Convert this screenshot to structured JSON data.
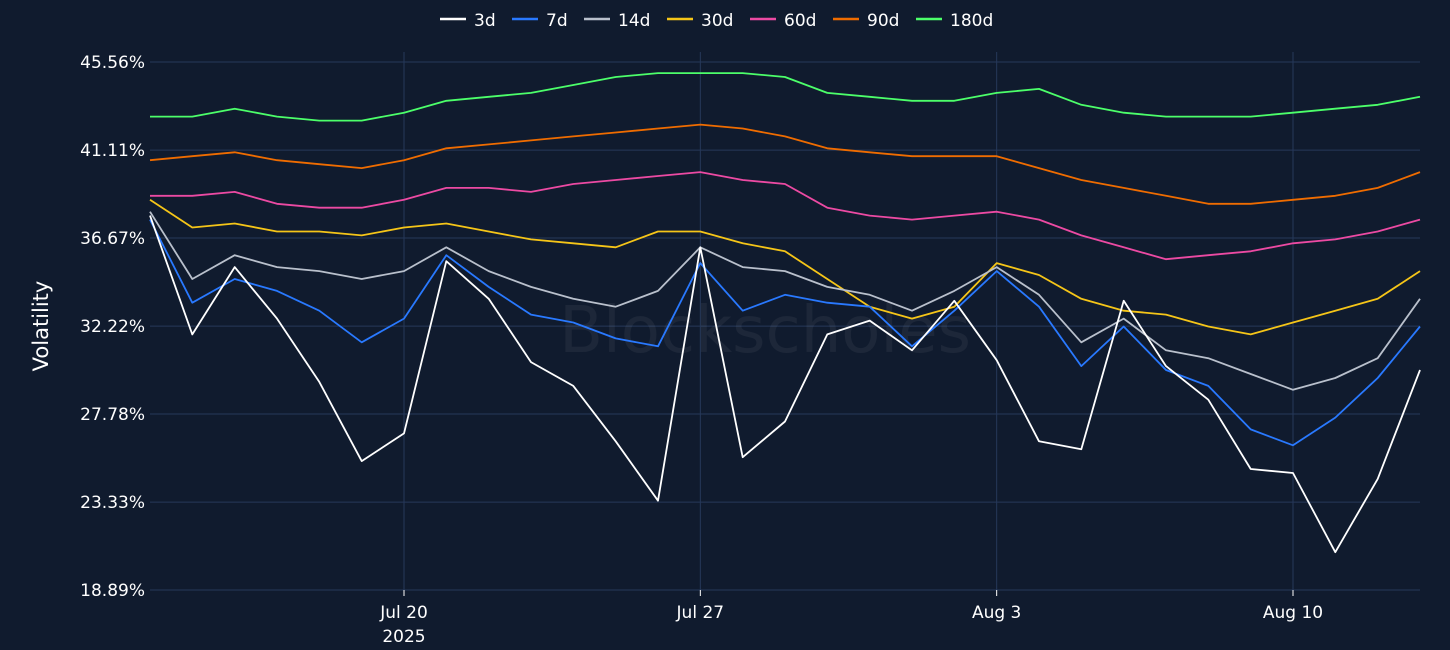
{
  "watermark": "Blockscholes",
  "chart_data": {
    "type": "line",
    "ylabel": "Volatility",
    "xlabel": "",
    "ylim": [
      18.89,
      45.56
    ],
    "yticks": [
      "18.89%",
      "23.33%",
      "27.78%",
      "32.22%",
      "36.67%",
      "41.11%",
      "45.56%"
    ],
    "ytick_values": [
      18.89,
      23.33,
      27.78,
      32.22,
      36.67,
      41.11,
      45.56
    ],
    "x_start": "2025-07-14",
    "x_end": "2025-08-13",
    "xticks": [
      {
        "date": "2025-07-20",
        "label": "Jul 20",
        "sublabel": "2025"
      },
      {
        "date": "2025-07-27",
        "label": "Jul 27",
        "sublabel": ""
      },
      {
        "date": "2025-08-03",
        "label": "Aug 3",
        "sublabel": ""
      },
      {
        "date": "2025-08-10",
        "label": "Aug 10",
        "sublabel": ""
      }
    ],
    "grid": true,
    "legend_position": "top-center",
    "x": [
      "2025-07-14",
      "2025-07-15",
      "2025-07-16",
      "2025-07-17",
      "2025-07-18",
      "2025-07-19",
      "2025-07-20",
      "2025-07-21",
      "2025-07-22",
      "2025-07-23",
      "2025-07-24",
      "2025-07-25",
      "2025-07-26",
      "2025-07-27",
      "2025-07-28",
      "2025-07-29",
      "2025-07-30",
      "2025-07-31",
      "2025-08-01",
      "2025-08-02",
      "2025-08-03",
      "2025-08-04",
      "2025-08-05",
      "2025-08-06",
      "2025-08-07",
      "2025-08-08",
      "2025-08-09",
      "2025-08-10",
      "2025-08-11",
      "2025-08-12",
      "2025-08-13"
    ],
    "series": [
      {
        "name": "3d",
        "color": "#ffffff",
        "values": [
          37.8,
          31.8,
          35.2,
          32.6,
          29.4,
          25.4,
          26.8,
          35.5,
          33.6,
          30.4,
          29.2,
          26.4,
          23.4,
          36.2,
          25.6,
          27.4,
          31.8,
          32.5,
          31.0,
          33.5,
          30.5,
          26.4,
          26.0,
          33.5,
          30.2,
          28.5,
          25.0,
          24.8,
          20.8,
          24.5,
          30.0
        ]
      },
      {
        "name": "7d",
        "color": "#2979ff",
        "values": [
          37.6,
          33.4,
          34.6,
          34.0,
          33.0,
          31.4,
          32.6,
          35.8,
          34.2,
          32.8,
          32.4,
          31.6,
          31.2,
          35.4,
          33.0,
          33.8,
          33.4,
          33.2,
          31.2,
          33.0,
          35.0,
          33.2,
          30.2,
          32.2,
          30.0,
          29.2,
          27.0,
          26.2,
          27.6,
          29.6,
          32.2
        ]
      },
      {
        "name": "14d",
        "color": "#b9c0cc",
        "values": [
          38.0,
          34.6,
          35.8,
          35.2,
          35.0,
          34.6,
          35.0,
          36.2,
          35.0,
          34.2,
          33.6,
          33.2,
          34.0,
          36.2,
          35.2,
          35.0,
          34.2,
          33.8,
          33.0,
          34.0,
          35.2,
          33.8,
          31.4,
          32.6,
          31.0,
          30.6,
          29.8,
          29.0,
          29.6,
          30.6,
          33.6
        ]
      },
      {
        "name": "30d",
        "color": "#f5c518",
        "values": [
          38.6,
          37.2,
          37.4,
          37.0,
          37.0,
          36.8,
          37.2,
          37.4,
          37.0,
          36.6,
          36.4,
          36.2,
          37.0,
          37.0,
          36.4,
          36.0,
          34.6,
          33.2,
          32.6,
          33.2,
          35.4,
          34.8,
          33.6,
          33.0,
          32.8,
          32.2,
          31.8,
          32.4,
          33.0,
          33.6,
          35.0
        ]
      },
      {
        "name": "60d",
        "color": "#ec4aa3",
        "values": [
          38.8,
          38.8,
          39.0,
          38.4,
          38.2,
          38.2,
          38.6,
          39.2,
          39.2,
          39.0,
          39.4,
          39.6,
          39.8,
          40.0,
          39.6,
          39.4,
          38.2,
          37.8,
          37.6,
          37.8,
          38.0,
          37.6,
          36.8,
          36.2,
          35.6,
          35.8,
          36.0,
          36.4,
          36.6,
          37.0,
          37.6
        ]
      },
      {
        "name": "90d",
        "color": "#ef6c00",
        "values": [
          40.6,
          40.8,
          41.0,
          40.6,
          40.4,
          40.2,
          40.6,
          41.2,
          41.4,
          41.6,
          41.8,
          42.0,
          42.2,
          42.4,
          42.2,
          41.8,
          41.2,
          41.0,
          40.8,
          40.8,
          40.8,
          40.2,
          39.6,
          39.2,
          38.8,
          38.4,
          38.4,
          38.6,
          38.8,
          39.2,
          40.0
        ]
      },
      {
        "name": "180d",
        "color": "#4cff6a",
        "values": [
          42.8,
          42.8,
          43.2,
          42.8,
          42.6,
          42.6,
          43.0,
          43.6,
          43.8,
          44.0,
          44.4,
          44.8,
          45.0,
          45.0,
          45.0,
          44.8,
          44.0,
          43.8,
          43.6,
          43.6,
          44.0,
          44.2,
          43.4,
          43.0,
          42.8,
          42.8,
          42.8,
          43.0,
          43.2,
          43.4,
          43.8
        ]
      }
    ]
  }
}
